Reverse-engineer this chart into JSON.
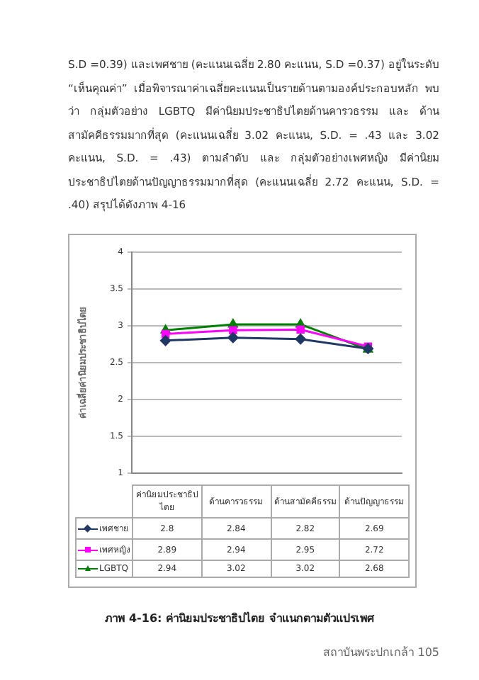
{
  "chart_data": {
    "type": "line",
    "title": "ภาพ 4-16: ค่านิยมประชาธิปไตย จำแนกตามตัวแปรเพศ",
    "ylabel": "ค่าเฉลี่ยค่านิยมประชาธิปไตย",
    "annotations": [
      "S.D =0.39) และเพศชาย (คะแนนเฉลี่ย 2.80 คะแนน, S.D =0.37) อยู่ในระดับ “เห็นคุณค่า” เมื่อพิจารณาค่าเฉลี่ยคะแนนเป็นรายด้านตามองค์ประกอบหลัก พบว่า กลุ่มตัวอย่าง LGBTQ มีค่านิยมประชาธิปไตยด้านคารวธรรม และ ด้านสามัคคีธรรมมากที่สุด (คะแนนเฉลี่ย 3.02 คะแนน, S.D. = .43 และ 3.02 คะแนน, S.D. = .43)  ตามลำดับ และ กลุ่มตัวอย่างเพศหญิง มีค่านิยมประชาธิปไตยด้านปัญญาธรรมมากที่สุด (คะแนนเฉลี่ย 2.72 คะแนน, S.D. = .40) สรุปได้ดังภาพ 4-16",
      "สถาบันพระปกเกล้า 105"
    ],
    "categories": [
      "ค่านิยมประชาธิปไตย",
      "ด้านคารวธรรม",
      "ด้านสามัคคีธรรม",
      "ด้านปัญญาธรรม"
    ],
    "series": [
      {
        "name": "เพศชาย",
        "color": "#1f3864",
        "marker": "diamond",
        "values": [
          2.8,
          2.84,
          2.82,
          2.69
        ]
      },
      {
        "name": "เพศหญิง",
        "color": "#ff00ff",
        "marker": "square",
        "values": [
          2.89,
          2.94,
          2.95,
          2.72
        ]
      },
      {
        "name": "LGBTQ",
        "color": "#008000",
        "marker": "triangle",
        "values": [
          2.94,
          3.02,
          3.02,
          2.68
        ]
      }
    ],
    "ylim": [
      1,
      4
    ],
    "yticks": [
      1,
      1.5,
      2,
      2.5,
      3,
      3.5,
      4
    ],
    "grid": "y",
    "legend": "bottom",
    "data_labels": true
  }
}
